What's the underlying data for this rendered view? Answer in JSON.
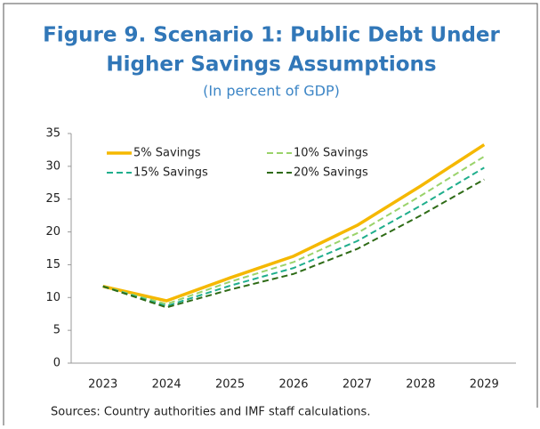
{
  "chart_data": {
    "type": "line",
    "title": [
      "Figure 9. Scenario 1: Public Debt Under",
      "Higher Savings Assumptions"
    ],
    "subtitle": "(In percent of GDP)",
    "categories": [
      "2023",
      "2024",
      "2025",
      "2026",
      "2027",
      "2028",
      "2029"
    ],
    "series": [
      {
        "name": "5% Savings",
        "color": "#f5b800",
        "line_style": "solid",
        "values": [
          11.7,
          9.5,
          13.0,
          16.3,
          21.0,
          27.0,
          33.3
        ]
      },
      {
        "name": "10% Savings",
        "color": "#9bd36b",
        "line_style": "dashed",
        "values": [
          11.7,
          9.0,
          12.4,
          15.4,
          19.8,
          25.5,
          31.5
        ]
      },
      {
        "name": "15% Savings",
        "color": "#1fae8c",
        "line_style": "dashed",
        "values": [
          11.7,
          8.7,
          11.8,
          14.5,
          18.6,
          24.0,
          29.8
        ]
      },
      {
        "name": "20% Savings",
        "color": "#2e6b16",
        "line_style": "dashed",
        "values": [
          11.7,
          8.5,
          11.2,
          13.6,
          17.4,
          22.5,
          28.0
        ]
      }
    ],
    "ylim": [
      0,
      35
    ],
    "yticks": [
      0,
      5,
      10,
      15,
      20,
      25,
      30,
      35
    ],
    "legend": "top-left",
    "source": "Sources: Country authorities and IMF staff calculations."
  }
}
